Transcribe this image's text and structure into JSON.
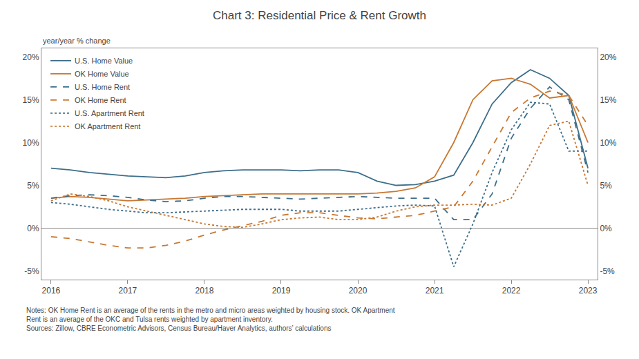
{
  "chart_data": {
    "type": "line",
    "title": "Chart 3: Residential Price & Rent Growth",
    "ylabel": "year/year % change",
    "annotations": [
      "Notes: OK Home Rent is an average of the rents in the metro and micro areas weighted by housing stock. OK Apartment",
      "Rent is an average of the OKC and Tulsa rents weighted by apartment inventory.",
      "Sources: Zillow, CBRE Econometric Advisors, Census Bureau/Haver Analytics, authors’ calculations"
    ],
    "categories": [
      "2016",
      null,
      null,
      null,
      "2017",
      null,
      null,
      null,
      "2018",
      null,
      null,
      null,
      "2019",
      null,
      null,
      null,
      "2020",
      null,
      null,
      null,
      "2021",
      null,
      null,
      null,
      "2022",
      null,
      null,
      null,
      "2023"
    ],
    "series": [
      {
        "name": "U.S. Home Value",
        "color": "#3d6e8a",
        "line_style": "solid",
        "values": [
          7.0,
          6.8,
          6.5,
          6.3,
          6.1,
          6.0,
          5.9,
          6.1,
          6.5,
          6.7,
          6.8,
          6.8,
          6.8,
          6.7,
          6.8,
          6.8,
          6.5,
          5.5,
          5.0,
          5.1,
          5.5,
          6.2,
          10.0,
          14.5,
          17.0,
          18.5,
          17.5,
          15.5,
          7.0
        ]
      },
      {
        "name": "OK Home Value",
        "color": "#c87832",
        "line_style": "solid",
        "values": [
          3.5,
          3.7,
          3.6,
          3.4,
          3.2,
          3.3,
          3.4,
          3.5,
          3.7,
          3.8,
          3.9,
          4.0,
          4.0,
          4.0,
          4.0,
          4.0,
          4.0,
          4.1,
          4.3,
          4.7,
          6.0,
          10.0,
          15.0,
          17.2,
          17.5,
          16.8,
          15.2,
          15.5,
          10.0
        ]
      },
      {
        "name": "U.S. Home Rent",
        "color": "#3d6e8a",
        "line_style": "dash",
        "values": [
          3.5,
          3.8,
          3.9,
          3.8,
          3.6,
          3.3,
          3.1,
          3.2,
          3.5,
          3.7,
          3.7,
          3.6,
          3.5,
          3.4,
          3.5,
          3.6,
          3.7,
          3.6,
          3.5,
          3.5,
          3.5,
          1.0,
          1.0,
          4.0,
          10.5,
          14.0,
          16.5,
          15.0,
          6.5
        ]
      },
      {
        "name": "OK Home Rent",
        "color": "#c87832",
        "line_style": "dash",
        "values": [
          -1.0,
          -1.2,
          -1.6,
          -2.0,
          -2.3,
          -2.3,
          -2.0,
          -1.5,
          -0.8,
          -0.2,
          0.3,
          0.8,
          1.5,
          1.8,
          1.8,
          1.5,
          1.2,
          1.1,
          1.3,
          1.5,
          2.0,
          2.5,
          5.5,
          9.5,
          13.5,
          15.2,
          16.0,
          15.5,
          12.0
        ]
      },
      {
        "name": "U.S. Apartment Rent",
        "color": "#3d6e8a",
        "line_style": "dot",
        "values": [
          3.0,
          2.8,
          2.5,
          2.2,
          2.0,
          1.8,
          1.8,
          1.9,
          2.0,
          2.1,
          2.2,
          2.2,
          2.2,
          2.0,
          2.0,
          2.0,
          2.2,
          2.4,
          2.6,
          2.7,
          2.6,
          -4.5,
          0.5,
          6.5,
          11.5,
          14.7,
          14.5,
          9.0,
          9.0
        ]
      },
      {
        "name": "OK Apartment Rent",
        "color": "#c87832",
        "line_style": "dot",
        "values": [
          3.2,
          4.0,
          3.7,
          3.2,
          2.5,
          2.0,
          1.5,
          1.0,
          0.5,
          0.2,
          0.1,
          0.5,
          1.0,
          1.2,
          1.3,
          1.0,
          1.0,
          1.3,
          2.0,
          2.5,
          2.7,
          2.7,
          2.8,
          2.7,
          3.5,
          7.5,
          12.0,
          12.5,
          5.0
        ]
      }
    ],
    "ylim": [
      -6,
      21
    ],
    "yticks": [
      {
        "value": -5,
        "label": "-5%"
      },
      {
        "value": 0,
        "label": "0%"
      },
      {
        "value": 5,
        "label": "5%"
      },
      {
        "value": 10,
        "label": "10%"
      },
      {
        "value": 15,
        "label": "15%"
      },
      {
        "value": 20,
        "label": "20%"
      }
    ],
    "y2lim": [
      -6,
      21
    ],
    "y2ticks": [
      {
        "value": -5,
        "label": "-5%"
      },
      {
        "value": 0,
        "label": "0%"
      },
      {
        "value": 5,
        "label": "5%"
      },
      {
        "value": 10,
        "label": "10%"
      },
      {
        "value": 15,
        "label": "15%"
      },
      {
        "value": 20,
        "label": "20%"
      }
    ],
    "grid": false,
    "legend": "upper left"
  }
}
